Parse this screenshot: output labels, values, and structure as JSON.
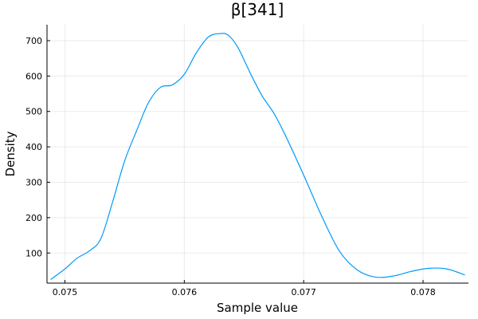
{
  "chart_data": {
    "type": "line",
    "title": "β[341]",
    "xlabel": "Sample value",
    "ylabel": "Density",
    "xlim": [
      0.07485,
      0.07838
    ],
    "ylim": [
      15,
      745
    ],
    "xticks": [
      0.075,
      0.076,
      0.077,
      0.078
    ],
    "xtick_labels": [
      "0.075",
      "0.076",
      "0.077",
      "0.078"
    ],
    "yticks": [
      100,
      200,
      300,
      400,
      500,
      600,
      700
    ],
    "ytick_labels": [
      "100",
      "200",
      "300",
      "400",
      "500",
      "600",
      "700"
    ],
    "grid": true,
    "legend": false,
    "color": "#009AFA",
    "series": [
      {
        "x": [
          0.07488,
          0.075,
          0.0751,
          0.0752,
          0.0753,
          0.0754,
          0.0755,
          0.0756,
          0.0757,
          0.0758,
          0.0759,
          0.076,
          0.0761,
          0.0762,
          0.0763,
          0.07637,
          0.07645,
          0.07655,
          0.07665,
          0.07675,
          0.07685,
          0.077,
          0.07715,
          0.0773,
          0.07745,
          0.0776,
          0.07775,
          0.0779,
          0.07805,
          0.0782,
          0.07835
        ],
        "y": [
          25,
          55,
          85,
          105,
          140,
          245,
          360,
          445,
          525,
          568,
          575,
          605,
          665,
          710,
          720,
          715,
          680,
          610,
          545,
          495,
          430,
          320,
          205,
          105,
          52,
          32,
          35,
          48,
          57,
          55,
          38
        ]
      }
    ]
  }
}
